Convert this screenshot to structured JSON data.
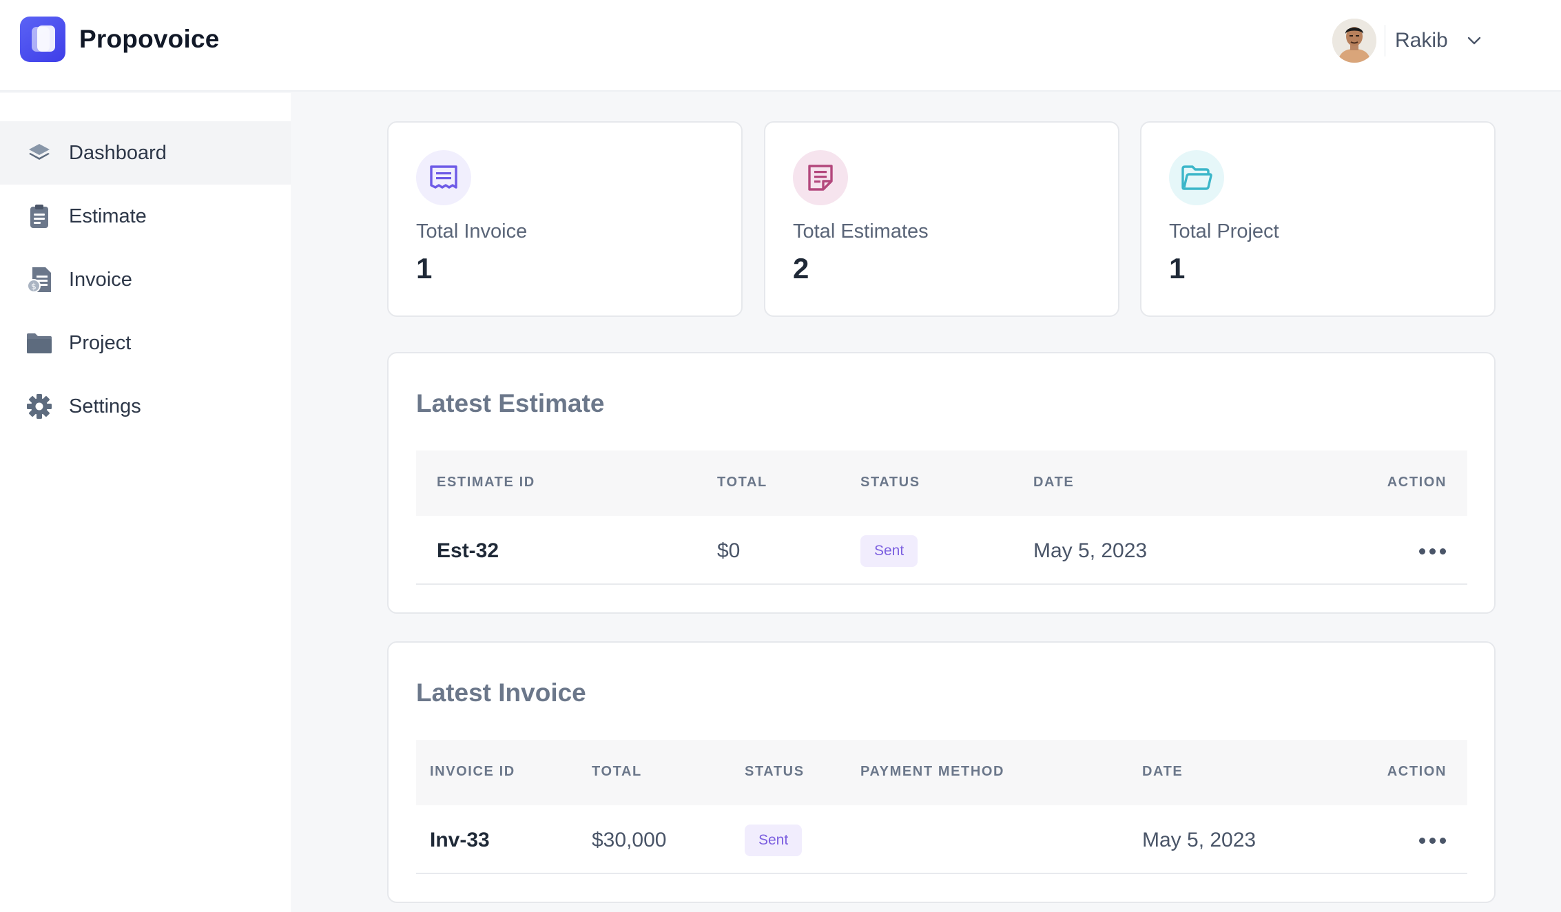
{
  "app": {
    "name": "Propovoice"
  },
  "user": {
    "name": "Rakib"
  },
  "sidebar": {
    "items": [
      {
        "label": "Dashboard",
        "icon": "dashboard-layers-icon",
        "active": true
      },
      {
        "label": "Estimate",
        "icon": "clipboard-icon",
        "active": false
      },
      {
        "label": "Invoice",
        "icon": "invoice-document-icon",
        "active": false
      },
      {
        "label": "Project",
        "icon": "folder-icon",
        "active": false
      },
      {
        "label": "Settings",
        "icon": "gear-icon",
        "active": false
      }
    ]
  },
  "stats": [
    {
      "label": "Total Invoice",
      "value": "1",
      "icon": "receipt-icon",
      "color": "#6d5ae6",
      "bg": "#f1effd"
    },
    {
      "label": "Total Estimates",
      "value": "2",
      "icon": "note-icon",
      "color": "#b3477c",
      "bg": "#f6e4ee"
    },
    {
      "label": "Total Project",
      "value": "1",
      "icon": "folder-icon",
      "color": "#3bb6c9",
      "bg": "#e6f7f9"
    }
  ],
  "latest_estimate": {
    "title": "Latest Estimate",
    "columns": [
      "ESTIMATE ID",
      "TOTAL",
      "STATUS",
      "DATE",
      "ACTION"
    ],
    "rows": [
      {
        "id": "Est-32",
        "total": "$0",
        "status": "Sent",
        "date": "May 5, 2023"
      }
    ]
  },
  "latest_invoice": {
    "title": "Latest Invoice",
    "columns": [
      "INVOICE ID",
      "TOTAL",
      "STATUS",
      "PAYMENT METHOD",
      "DATE",
      "ACTION"
    ],
    "rows": [
      {
        "id": "Inv-33",
        "total": "$30,000",
        "status": "Sent",
        "payment_method": "",
        "date": "May 5, 2023"
      }
    ]
  },
  "colors": {
    "accent": "#4f46e5",
    "badge_text": "#7c5fe0",
    "badge_bg": "#f1edfd"
  }
}
